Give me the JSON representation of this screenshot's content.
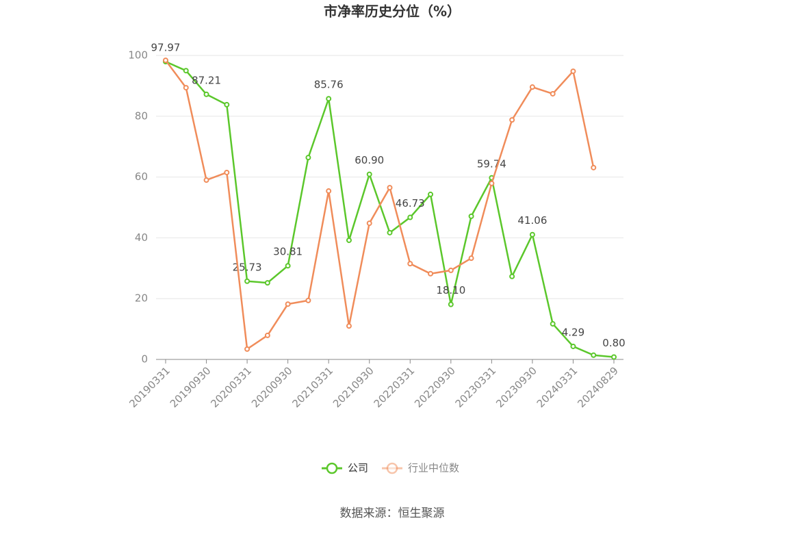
{
  "chart_data": {
    "type": "line",
    "title": "市净率历史分位（%）",
    "categories": [
      "20190331",
      null,
      "20190930",
      null,
      "20200331",
      null,
      "20200930",
      null,
      "20210331",
      null,
      "20210930",
      null,
      "20220331",
      null,
      "20220930",
      null,
      "20230331",
      null,
      "20230930",
      null,
      "20240331",
      null,
      "20240829"
    ],
    "series": [
      {
        "name": "公司",
        "color": "#5bc72b",
        "values": [
          97.97,
          95.0,
          87.21,
          83.8,
          25.73,
          25.2,
          30.81,
          66.4,
          85.76,
          39.2,
          60.9,
          41.7,
          46.73,
          54.3,
          18.1,
          47.1,
          59.74,
          27.3,
          41.06,
          11.7,
          4.29,
          1.4,
          0.8
        ],
        "value_labels": [
          "97.97",
          null,
          "87.21",
          null,
          "25.73",
          null,
          "30.81",
          null,
          "85.76",
          null,
          "60.90",
          null,
          "46.73",
          null,
          "18.10",
          null,
          "59.74",
          null,
          "41.06",
          null,
          "4.29",
          null,
          "0.80"
        ]
      },
      {
        "name": "行业中位数",
        "color": "#f08c5a",
        "values": [
          98.4,
          89.4,
          59.0,
          61.5,
          3.4,
          7.9,
          18.2,
          19.4,
          55.4,
          11.0,
          44.8,
          56.5,
          31.5,
          28.2,
          29.3,
          33.3,
          57.9,
          78.8,
          89.6,
          87.4,
          94.8,
          63.1,
          null
        ]
      }
    ],
    "ylim": [
      0,
      100
    ],
    "yticks": [
      0,
      20,
      40,
      60,
      80,
      100
    ],
    "grid": true,
    "legend": "bottom",
    "source": "数据来源：恒生聚源"
  }
}
